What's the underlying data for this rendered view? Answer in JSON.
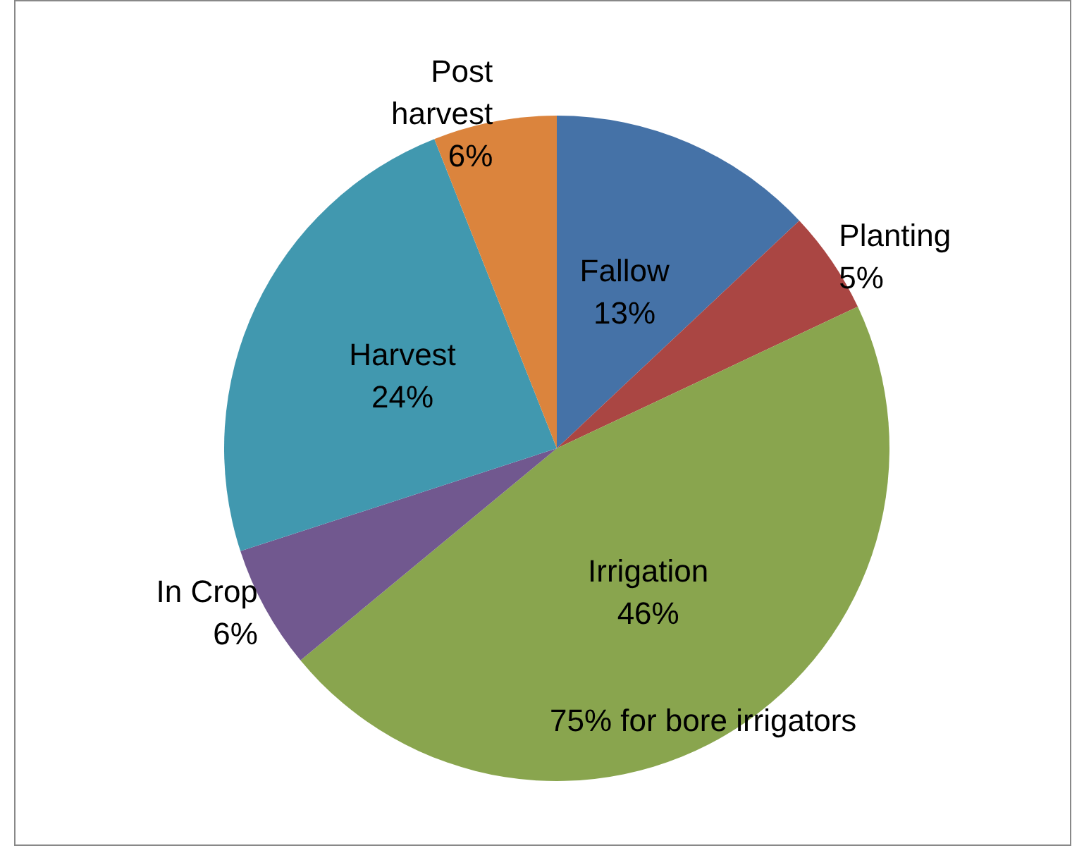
{
  "chart_data": {
    "type": "pie",
    "categories": [
      "Fallow",
      "Planting",
      "Irrigation",
      "In Crop",
      "Harvest",
      "Post harvest"
    ],
    "values": [
      13,
      5,
      46,
      6,
      24,
      6
    ],
    "value_labels": [
      "13%",
      "5%",
      "46%",
      "6%",
      "24%",
      "6%"
    ],
    "colors": [
      "#4572a7",
      "#aa4643",
      "#89a54e",
      "#71588f",
      "#4198af",
      "#db843d"
    ],
    "annotations": [
      "75% for bore irrigators"
    ],
    "legend": false
  }
}
